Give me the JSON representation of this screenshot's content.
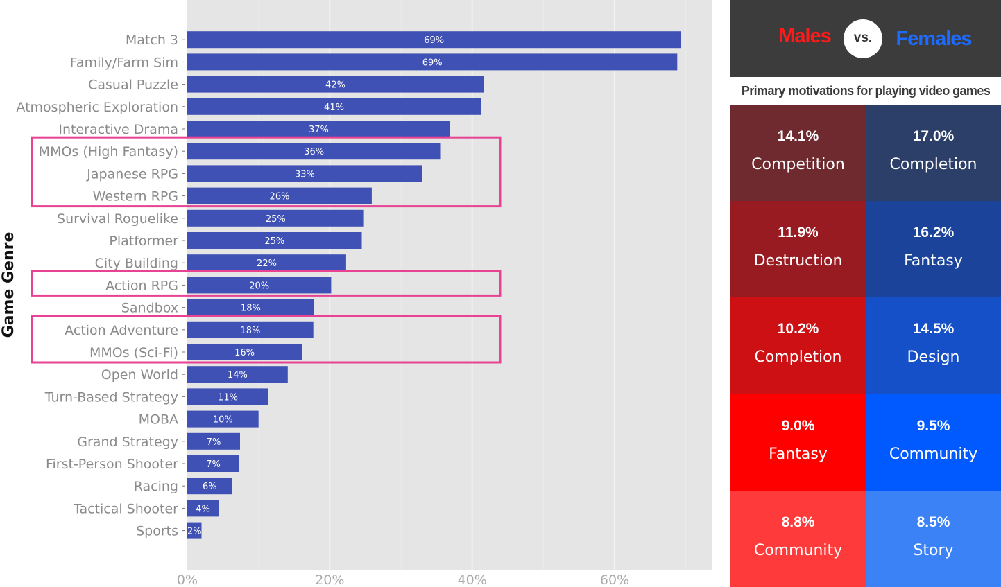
{
  "chart_data": {
    "type": "bar",
    "orientation": "horizontal",
    "ylabel": "Game Genre",
    "xlabel": "",
    "xlim": [
      0,
      74
    ],
    "xticks": [
      "0%",
      "20%",
      "40%",
      "60%"
    ],
    "grid": true,
    "categories": [
      "Match 3",
      "Family/Farm Sim",
      "Casual Puzzle",
      "Atmospheric Exploration",
      "Interactive Drama",
      "MMOs (High Fantasy)",
      "Japanese RPG",
      "Western RPG",
      "Survival Roguelike",
      "Platformer",
      "City Building",
      "Action RPG",
      "Sandbox",
      "Action Adventure",
      "MMOs (Sci-Fi)",
      "Open World",
      "Turn-Based Strategy",
      "MOBA",
      "Grand Strategy",
      "First-Person Shooter",
      "Racing",
      "Tactical Shooter",
      "Sports"
    ],
    "values": [
      69.3,
      68.8,
      41.6,
      41.2,
      36.9,
      35.6,
      33.0,
      25.9,
      24.8,
      24.5,
      22.3,
      20.2,
      17.8,
      17.7,
      16.1,
      14.1,
      11.4,
      10.0,
      7.4,
      7.3,
      6.3,
      4.4,
      2.0
    ],
    "value_labels": [
      "69%",
      "69%",
      "42%",
      "41%",
      "37%",
      "36%",
      "33%",
      "26%",
      "25%",
      "25%",
      "22%",
      "20%",
      "18%",
      "18%",
      "16%",
      "14%",
      "11%",
      "10%",
      "7%",
      "7%",
      "6%",
      "4%",
      "2%"
    ],
    "highlight_groups": [
      [
        "MMOs (High Fantasy)",
        "Western RPG"
      ],
      [
        "Action RPG",
        "Action RPG"
      ],
      [
        "Action Adventure",
        "MMOs (Sci-Fi)"
      ]
    ],
    "bar_color": "#3f51b5",
    "highlight_color": "#e84393",
    "background_color": "#e5e5e5"
  },
  "panel": {
    "males_label": "Males",
    "vs_label": "vs.",
    "females_label": "Females",
    "title": "Primary motivations for playing video games",
    "males": [
      {
        "pct": "14.1%",
        "label": "Competition",
        "color": "#6e2a2f"
      },
      {
        "pct": "11.9%",
        "label": "Destruction",
        "color": "#981b22"
      },
      {
        "pct": "10.2%",
        "label": "Completion",
        "color": "#cc1014"
      },
      {
        "pct": "9.0%",
        "label": "Fantasy",
        "color": "#ff0000"
      },
      {
        "pct": "8.8%",
        "label": "Community",
        "color": "#ff3a3a"
      }
    ],
    "females": [
      {
        "pct": "17.0%",
        "label": "Completion",
        "color": "#2c3f69"
      },
      {
        "pct": "16.2%",
        "label": "Fantasy",
        "color": "#1b439a"
      },
      {
        "pct": "14.5%",
        "label": "Design",
        "color": "#1550c8"
      },
      {
        "pct": "9.5%",
        "label": "Community",
        "color": "#005aff"
      },
      {
        "pct": "8.5%",
        "label": "Story",
        "color": "#3b82f6"
      }
    ],
    "header_color": "#3c3c3c"
  }
}
